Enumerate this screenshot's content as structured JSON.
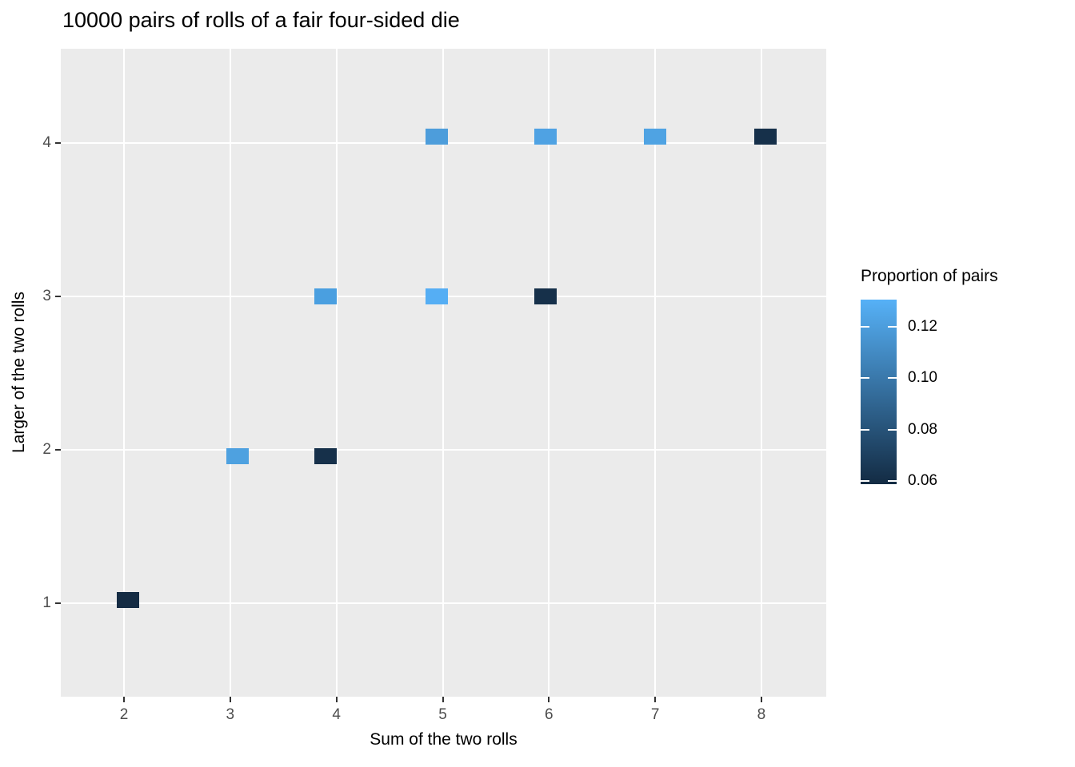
{
  "chart": {
    "title": "10000 pairs of rolls of a fair four-sided die",
    "x_axis": {
      "title": "Sum of the two rolls",
      "ticks": [
        2,
        3,
        4,
        5,
        6,
        7,
        8
      ]
    },
    "y_axis": {
      "title": "Larger of the two rolls",
      "ticks": [
        1,
        2,
        3,
        4
      ]
    },
    "legend": {
      "title": "Proportion of pairs",
      "tick_values": [
        0.12,
        0.1,
        0.08,
        0.06
      ],
      "tick_labels": [
        "0.12",
        "0.10",
        "0.08",
        "0.06"
      ]
    },
    "colors": {
      "panel_background": "#EBEBEB",
      "gridline": "#FFFFFF",
      "tick_text": "#4D4D4D",
      "title_text": "#000000"
    }
  },
  "chart_data": {
    "type": "heatmap",
    "title": "10000 pairs of rolls of a fair four-sided die",
    "xlabel": "Sum of the two rolls",
    "ylabel": "Larger of the two rolls",
    "legend_title": "Proportion of pairs",
    "x_ticks": [
      2,
      3,
      4,
      5,
      6,
      7,
      8
    ],
    "y_ticks": [
      1,
      2,
      3,
      4
    ],
    "xlim": [
      1.405,
      8.61
    ],
    "ylim": [
      0.391,
      4.615
    ],
    "grid": "major white gridlines on gray panel, no minor gridlines",
    "legend_position": "right",
    "gradient": {
      "low_value": 0.0588,
      "high_value": 0.1306,
      "low_color": "#132B43",
      "high_color": "#56B1F7"
    },
    "points": [
      {
        "sum": 2,
        "larger": 1,
        "proportion": 0.06,
        "color": "#152C44",
        "x_plot": 2.04,
        "y_plot": 1.02
      },
      {
        "sum": 3,
        "larger": 2,
        "proportion": 0.122,
        "color": "#4EA1E0",
        "x_plot": 3.07,
        "y_plot": 1.96
      },
      {
        "sum": 4,
        "larger": 2,
        "proportion": 0.062,
        "color": "#16304A",
        "x_plot": 3.9,
        "y_plot": 1.96
      },
      {
        "sum": 4,
        "larger": 3,
        "proportion": 0.121,
        "color": "#4A9FE0",
        "x_plot": 3.9,
        "y_plot": 3.0
      },
      {
        "sum": 5,
        "larger": 3,
        "proportion": 0.129,
        "color": "#55AEF4",
        "x_plot": 4.94,
        "y_plot": 3.0
      },
      {
        "sum": 6,
        "larger": 3,
        "proportion": 0.062,
        "color": "#16304A",
        "x_plot": 5.97,
        "y_plot": 3.0
      },
      {
        "sum": 5,
        "larger": 4,
        "proportion": 0.12,
        "color": "#4D9DDB",
        "x_plot": 4.94,
        "y_plot": 4.04
      },
      {
        "sum": 6,
        "larger": 4,
        "proportion": 0.123,
        "color": "#4FA2E3",
        "x_plot": 5.97,
        "y_plot": 4.04
      },
      {
        "sum": 7,
        "larger": 4,
        "proportion": 0.123,
        "color": "#4FA3E3",
        "x_plot": 7.0,
        "y_plot": 4.04
      },
      {
        "sum": 8,
        "larger": 4,
        "proportion": 0.062,
        "color": "#16304A",
        "x_plot": 8.04,
        "y_plot": 4.04
      }
    ]
  }
}
